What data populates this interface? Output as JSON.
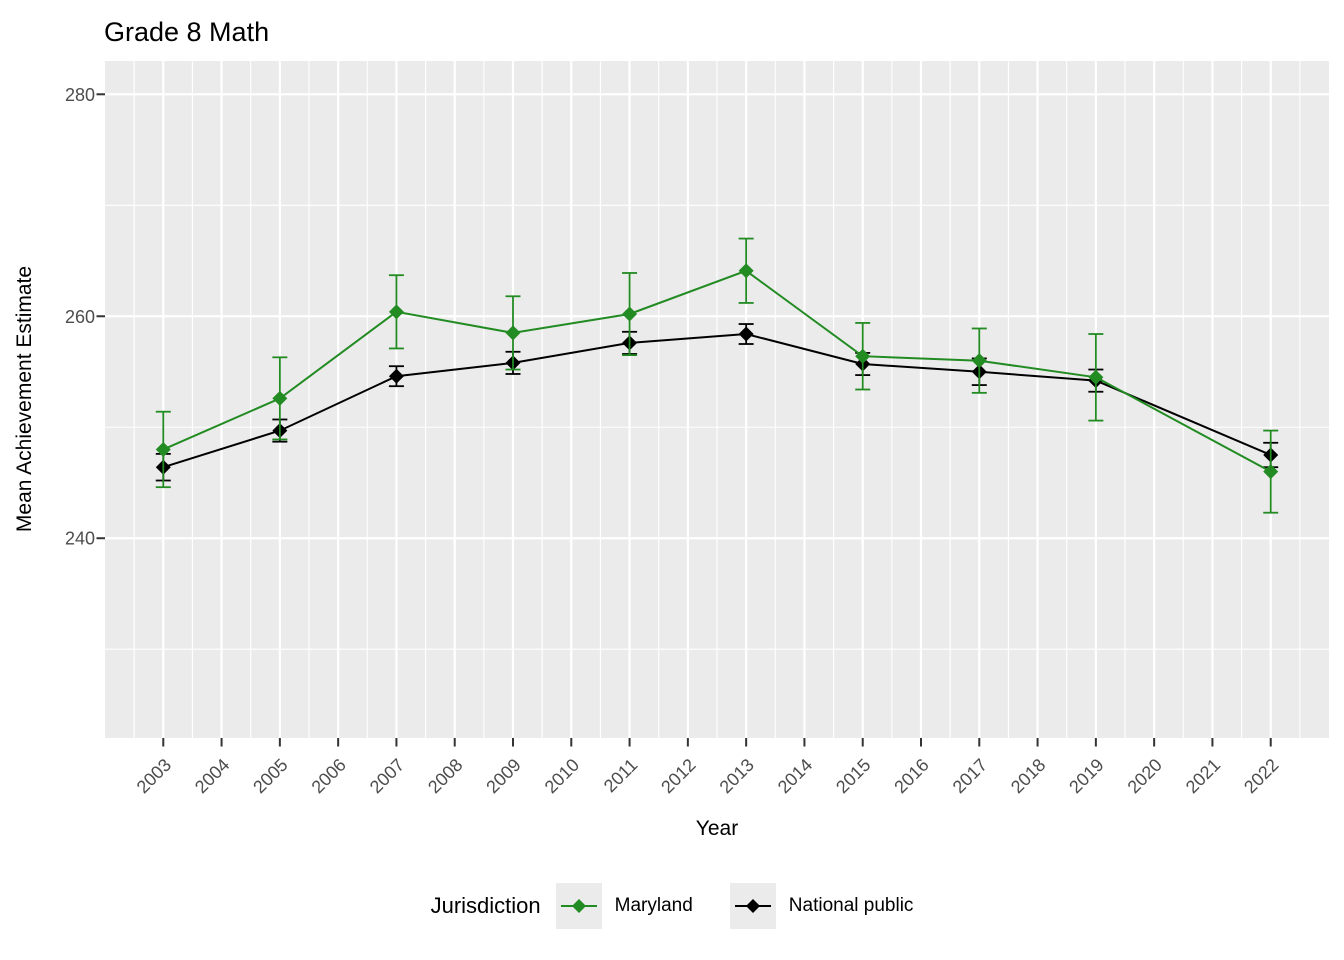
{
  "title": "Grade 8 Math",
  "axes": {
    "x_label": "Year",
    "y_label": "Mean Achievement Estimate",
    "y_ticks": [
      240,
      260,
      280
    ],
    "y_minor": [
      230,
      250,
      270
    ],
    "x_ticks": [
      2003,
      2004,
      2005,
      2006,
      2007,
      2008,
      2009,
      2010,
      2011,
      2012,
      2013,
      2014,
      2015,
      2016,
      2017,
      2018,
      2019,
      2020,
      2021,
      2022
    ]
  },
  "legend": {
    "title": "Jurisdiction",
    "entries": [
      {
        "label": "Maryland",
        "color": "#228B22"
      },
      {
        "label": "National public",
        "color": "#000000"
      }
    ]
  },
  "colors": {
    "panel_background": "#EBEBEB",
    "gridline": "#FFFFFF",
    "axis_text": "#4D4D4D",
    "tick_mark": "#333333",
    "title_text": "#000000",
    "maryland_green": "#228B22",
    "national_black": "#000000"
  },
  "chart_data": {
    "type": "line",
    "title": "Grade 8 Math",
    "xlabel": "Year",
    "ylabel": "Mean Achievement Estimate",
    "x": [
      2003,
      2005,
      2007,
      2009,
      2011,
      2013,
      2015,
      2017,
      2019,
      2022
    ],
    "series": [
      {
        "name": "National public",
        "color": "#000000",
        "values": [
          246.4,
          249.7,
          254.6,
          255.8,
          257.6,
          258.4,
          255.7,
          255.0,
          254.2,
          247.5
        ],
        "errors": [
          1.2,
          1.0,
          0.9,
          1.0,
          1.0,
          0.9,
          1.0,
          1.2,
          1.0,
          1.1
        ]
      },
      {
        "name": "Maryland",
        "color": "#228B22",
        "values": [
          248.0,
          252.6,
          260.4,
          258.5,
          260.2,
          264.1,
          256.4,
          256.0,
          254.5,
          246.0
        ],
        "errors": [
          3.4,
          3.7,
          3.3,
          3.3,
          3.7,
          2.9,
          3.0,
          2.9,
          3.9,
          3.7
        ]
      }
    ],
    "point_shape": "diamond",
    "error_bars": true,
    "ylim": [
      222,
      283
    ],
    "xlim": [
      2002,
      2023
    ],
    "x_breaks": [
      2003,
      2004,
      2005,
      2006,
      2007,
      2008,
      2009,
      2010,
      2011,
      2012,
      2013,
      2014,
      2015,
      2016,
      2017,
      2018,
      2019,
      2020,
      2021,
      2022
    ],
    "y_breaks": [
      240,
      260,
      280
    ],
    "y_minor_breaks": [
      230,
      250,
      270
    ],
    "grid": true,
    "legend_position": "bottom",
    "legend_title": "Jurisdiction"
  }
}
